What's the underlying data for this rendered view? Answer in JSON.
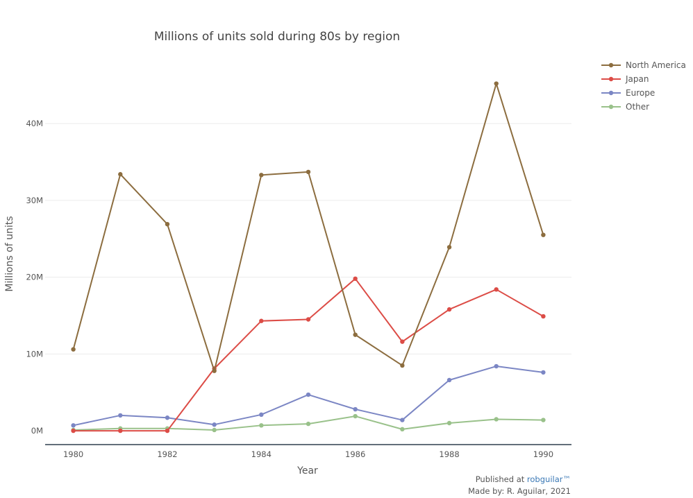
{
  "chart_data": {
    "type": "line",
    "title": "Millions of units sold during 80s by region",
    "xlabel": "Year",
    "ylabel": "Millions of units",
    "x": [
      1980,
      1981,
      1982,
      1983,
      1984,
      1985,
      1986,
      1987,
      1988,
      1989,
      1990
    ],
    "x_tick_labels": [
      "1980",
      "1982",
      "1984",
      "1986",
      "1988",
      "1990"
    ],
    "x_tick_values": [
      1980,
      1982,
      1984,
      1986,
      1988,
      1990
    ],
    "y_tick_labels": [
      "0M",
      "10M",
      "20M",
      "30M",
      "40M"
    ],
    "y_tick_values": [
      0,
      10,
      20,
      30,
      40
    ],
    "xlim": [
      1979.4,
      1990.6
    ],
    "ylim": [
      -1.8,
      48.5
    ],
    "grid": "horizontal",
    "legend_position": "top-right",
    "series": [
      {
        "name": "North America",
        "color": "#8c6d3f",
        "values": [
          10.6,
          33.4,
          26.9,
          7.8,
          33.3,
          33.7,
          12.5,
          8.5,
          23.9,
          45.2,
          25.5
        ]
      },
      {
        "name": "Japan",
        "color": "#dc4c46",
        "values": [
          0.0,
          0.0,
          0.0,
          8.1,
          14.3,
          14.5,
          19.8,
          11.6,
          15.8,
          18.4,
          14.9
        ]
      },
      {
        "name": "Europe",
        "color": "#7b86c4",
        "values": [
          0.7,
          2.0,
          1.7,
          0.8,
          2.1,
          4.7,
          2.8,
          1.4,
          6.6,
          8.4,
          7.6
        ]
      },
      {
        "name": "Other",
        "color": "#99c18a",
        "values": [
          0.1,
          0.3,
          0.3,
          0.1,
          0.7,
          0.9,
          1.9,
          0.2,
          1.0,
          1.5,
          1.4
        ]
      }
    ]
  },
  "footer": {
    "published_prefix": "Published at ",
    "published_link": "robguilar™",
    "made_by": "Made by: R. Aguilar, 2021"
  }
}
